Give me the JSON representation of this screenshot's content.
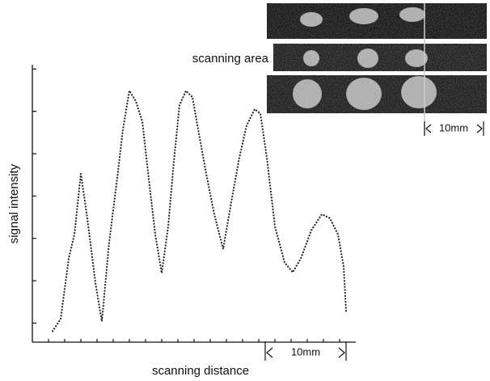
{
  "chart_data": {
    "type": "line",
    "y_label": "signal intensity",
    "x_label": "scanning distance",
    "annotations": [
      "scanning area",
      "10mm",
      "10mm"
    ],
    "xlim": [
      0,
      40
    ],
    "ylim": [
      1.1,
      14.2
    ],
    "xticks": [
      2,
      4,
      6,
      8,
      10,
      12,
      14,
      16,
      18,
      20,
      22,
      24,
      26,
      28,
      30,
      32,
      34,
      36,
      38
    ],
    "yticks": [
      2,
      4,
      6,
      8,
      10,
      12,
      14
    ],
    "x": [
      2.5,
      3.5,
      4.5,
      5.2,
      6.0,
      6.8,
      7.8,
      8.6,
      9.5,
      10.5,
      11.2,
      12.0,
      12.8,
      13.6,
      14.5,
      15.2,
      16.0,
      16.8,
      17.5,
      18.2,
      19.0,
      19.8,
      20.6,
      21.5,
      22.5,
      23.6,
      24.6,
      25.6,
      26.5,
      27.5,
      28.2,
      29.0,
      30.0,
      31.2,
      32.2,
      33.2,
      34.5,
      35.8,
      36.8,
      37.8,
      38.5,
      38.8
    ],
    "series": [
      {
        "color": "#222222",
        "values": [
          1.62,
          2.19,
          5.05,
          6.19,
          9.05,
          6.95,
          3.9,
          2.08,
          5.81,
          8.86,
          11.14,
          12.97,
          12.48,
          11.52,
          8.48,
          6.19,
          4.36,
          6.57,
          9.62,
          12.29,
          12.97,
          12.67,
          10.95,
          9.05,
          7.14,
          5.5,
          7.71,
          9.81,
          11.33,
          12.1,
          11.9,
          9.81,
          6.57,
          4.86,
          4.4,
          5.05,
          6.38,
          7.14,
          6.95,
          6.19,
          4.67,
          2.57
        ]
      }
    ]
  }
}
